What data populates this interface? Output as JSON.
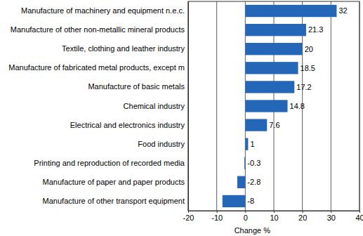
{
  "chart_data": {
    "type": "bar",
    "orientation": "horizontal",
    "x_label": "Change %",
    "categories": [
      "Manufacture of machinery and equipment n.e.c.",
      "Manufacture of other non-metallic mineral products",
      "Textile, clothing and leather industry",
      "Manufacture of fabricated metal products, except m",
      "Manufacture of basic metals",
      "Chemical industry",
      "Electrical and electronics industry",
      "Food industry",
      "Printing and reproduction of recorded media",
      "Manufacture of paper and paper products",
      "Manufacture of other transport equipment"
    ],
    "values": [
      32,
      21.3,
      20,
      18.5,
      17.2,
      14.8,
      7.6,
      1,
      -0.3,
      -2.8,
      -8
    ],
    "color": "#2466b8",
    "xlim": [
      -20,
      40
    ],
    "xticks": [
      -20,
      -10,
      0,
      10,
      20,
      30,
      40
    ],
    "grid": true,
    "data_labels": true
  }
}
